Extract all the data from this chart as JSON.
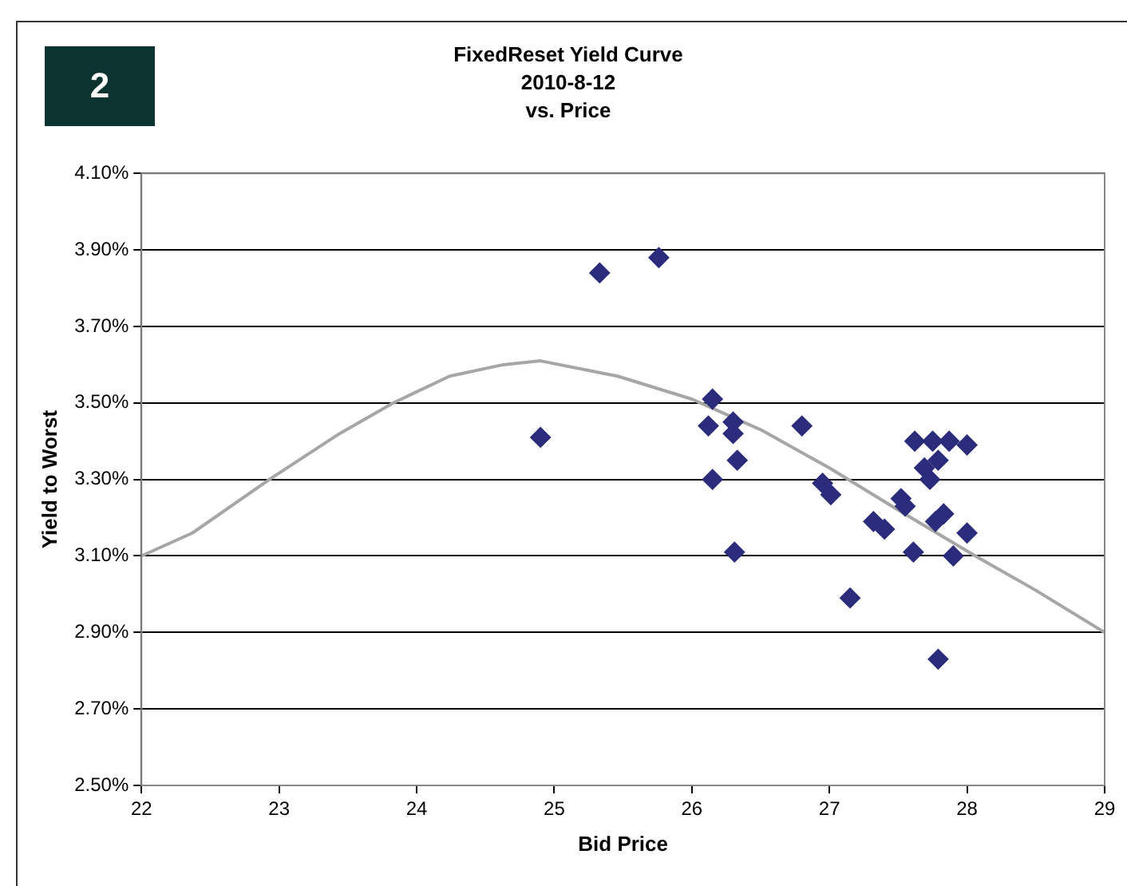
{
  "chart_data": {
    "type": "scatter",
    "title": "FixedReset Yield Curve",
    "subtitle": "2010-8-12\nvs. Price",
    "xlabel": "Bid Price",
    "ylabel": "Yield to Worst",
    "annotations": [
      "2"
    ],
    "xlim": [
      22,
      29
    ],
    "xticks": [
      22,
      23,
      24,
      25,
      26,
      27,
      28,
      29
    ],
    "ylim": [
      2.5,
      4.1
    ],
    "yticks": [
      {
        "value": 2.5,
        "label": "2.50%"
      },
      {
        "value": 2.7,
        "label": "2.70%"
      },
      {
        "value": 2.9,
        "label": "2.90%"
      },
      {
        "value": 3.1,
        "label": "3.10%"
      },
      {
        "value": 3.3,
        "label": "3.30%"
      },
      {
        "value": 3.5,
        "label": "3.50%"
      },
      {
        "value": 3.7,
        "label": "3.70%"
      },
      {
        "value": 3.9,
        "label": "3.90%"
      },
      {
        "value": 4.1,
        "label": "4.10%"
      }
    ],
    "grid": "y",
    "series": [
      {
        "type": "line",
        "color": "#a6a6a6",
        "marker": "none",
        "line_style": "solid",
        "x": [
          22,
          22.37,
          22.93,
          23.44,
          23.83,
          24.24,
          24.63,
          24.9,
          25.46,
          26,
          26.5,
          27,
          27.5,
          28.06,
          28.5,
          29
        ],
        "values": [
          3.1,
          3.16,
          3.3,
          3.42,
          3.5,
          3.57,
          3.6,
          3.61,
          3.57,
          3.51,
          3.43,
          3.33,
          3.22,
          3.1,
          3.01,
          2.9
        ]
      },
      {
        "type": "scatter",
        "color": "#2b2c7c",
        "marker": "diamond",
        "x": [
          25.33,
          25.76,
          24.9,
          26.15,
          26.12,
          26.3,
          26.3,
          26.33,
          26.15,
          26.31,
          26.8,
          26.95,
          27.01,
          27.15,
          27.32,
          27.4,
          27.52,
          27.55,
          27.61,
          27.62,
          27.75,
          27.87,
          28.0,
          27.69,
          27.79,
          27.73,
          27.77,
          27.83,
          27.9,
          28.0,
          27.79
        ],
        "values": [
          3.84,
          3.88,
          3.41,
          3.51,
          3.44,
          3.45,
          3.42,
          3.35,
          3.3,
          3.11,
          3.44,
          3.29,
          3.26,
          2.99,
          3.19,
          3.17,
          3.25,
          3.23,
          3.11,
          3.4,
          3.4,
          3.4,
          3.39,
          3.33,
          3.35,
          3.3,
          3.19,
          3.21,
          3.1,
          3.16,
          2.83
        ]
      }
    ]
  }
}
